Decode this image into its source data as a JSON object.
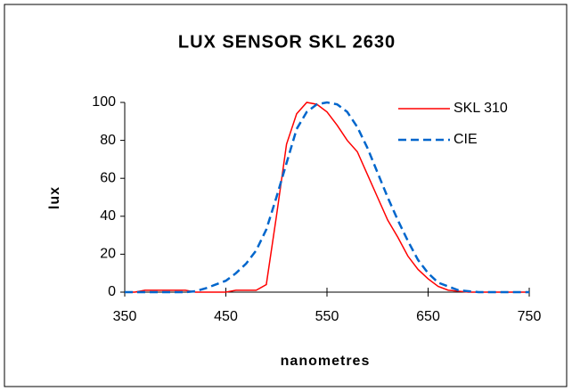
{
  "chart_data": {
    "type": "line",
    "title": "LUX SENSOR SKL 2630",
    "x_label": "nanometres",
    "y_label": "lux",
    "x": [
      350,
      360,
      370,
      380,
      390,
      400,
      410,
      420,
      430,
      440,
      450,
      460,
      470,
      480,
      490,
      500,
      510,
      520,
      530,
      540,
      550,
      560,
      570,
      580,
      590,
      600,
      610,
      620,
      630,
      640,
      650,
      660,
      670,
      680,
      690,
      700,
      710,
      720,
      730,
      740,
      750
    ],
    "series": [
      {
        "name": "SKL 310",
        "color": "#ff0000",
        "dashed": false,
        "values": [
          0,
          0,
          1,
          1,
          1,
          1,
          1,
          0,
          0,
          0,
          0,
          1,
          1,
          1,
          4,
          40,
          78,
          94,
          100,
          99,
          95,
          88,
          80,
          74,
          62,
          50,
          38,
          29,
          19,
          12,
          7,
          3,
          1,
          0.5,
          0,
          0,
          0,
          0,
          0,
          0,
          0
        ]
      },
      {
        "name": "CIE",
        "color": "#0066cc",
        "dashed": true,
        "values": [
          0,
          0,
          0,
          0,
          0,
          0,
          0,
          0.5,
          2,
          4,
          6,
          10,
          15,
          22,
          33,
          50,
          68,
          86,
          95,
          99,
          100,
          99,
          95,
          87,
          76,
          63,
          50,
          38,
          27,
          17,
          10,
          5,
          3,
          1,
          0.5,
          0,
          0,
          0,
          0,
          0,
          0
        ]
      }
    ],
    "xlim": [
      350,
      750
    ],
    "xticks": [
      350,
      450,
      550,
      650,
      750
    ],
    "ylim": [
      0,
      100
    ],
    "yticks": [
      0,
      20,
      40,
      60,
      80,
      100
    ],
    "grid": false,
    "legend": "upper right"
  }
}
